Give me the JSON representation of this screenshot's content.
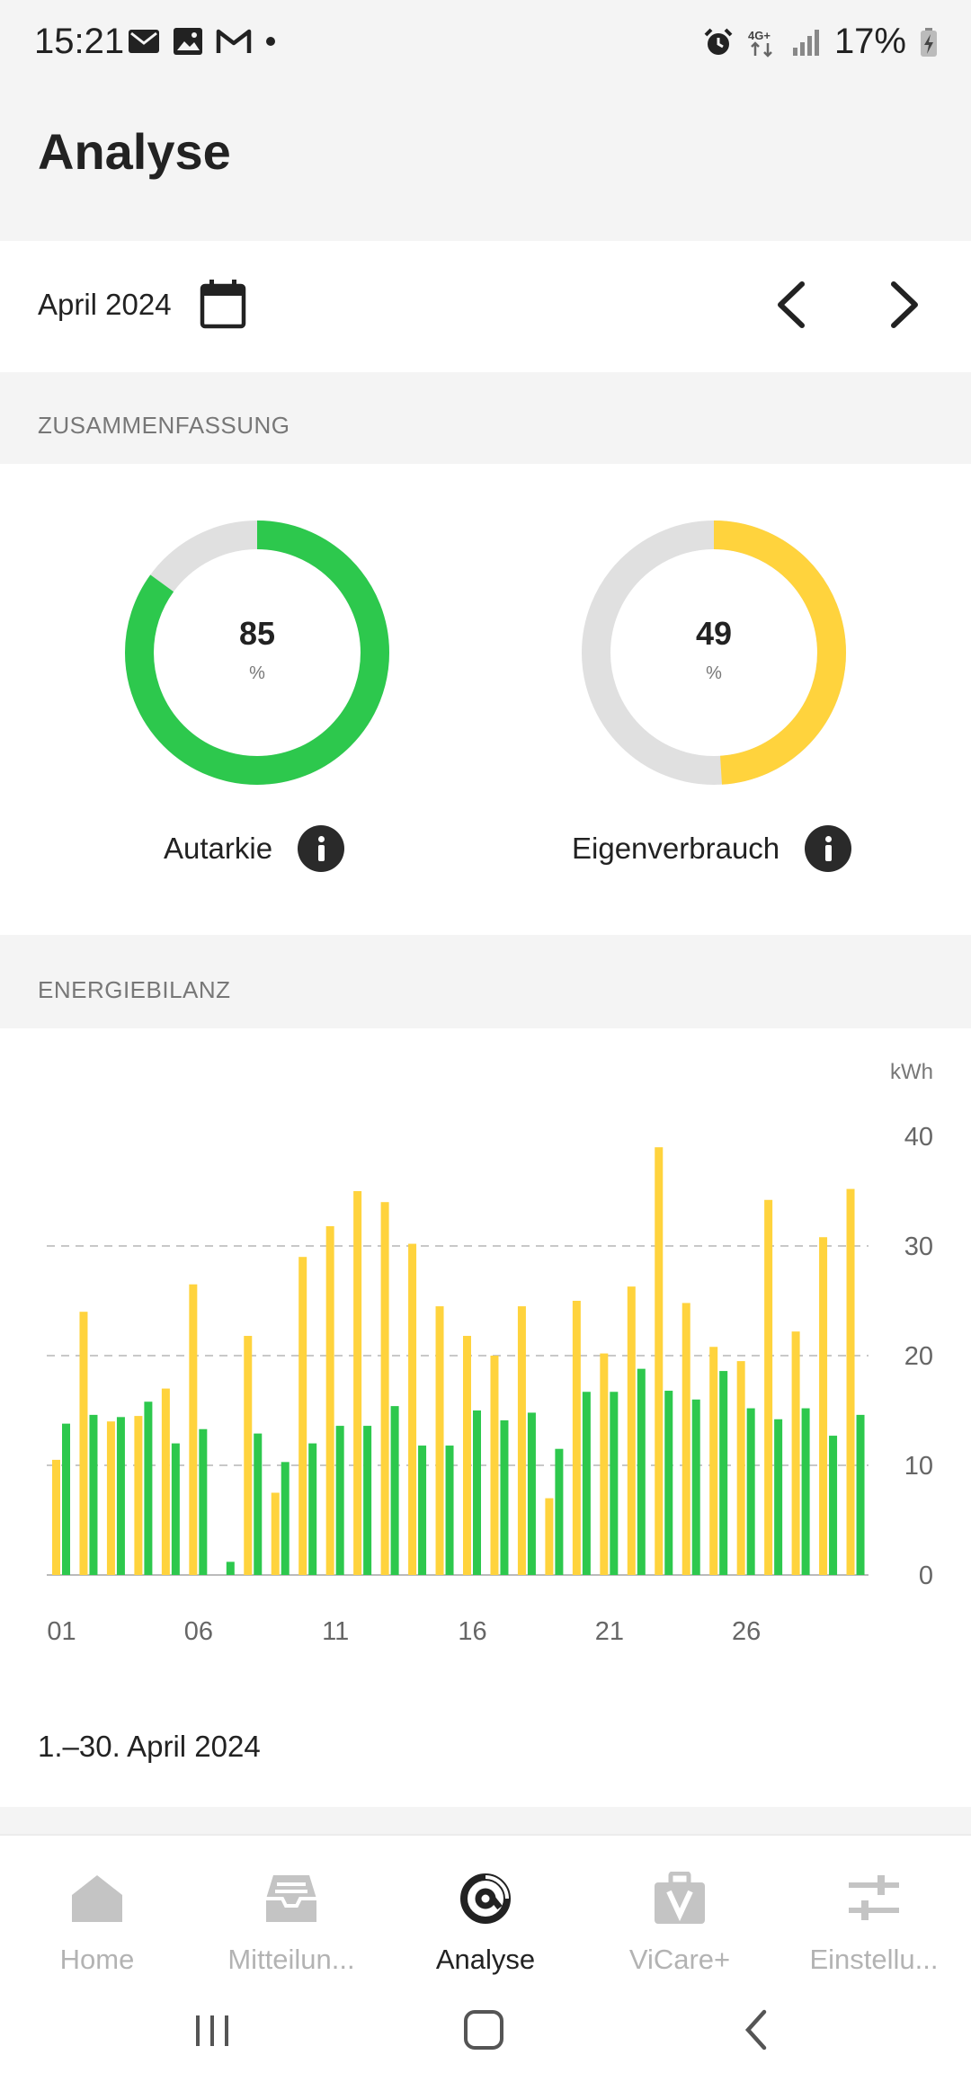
{
  "status_bar": {
    "time": "15:21",
    "battery": "17%",
    "network": "4G+"
  },
  "header": {
    "title": "Analyse"
  },
  "date_selector": {
    "label": "April 2024"
  },
  "summary": {
    "section_title": "ZUSAMMENFASSUNG",
    "autarkie": {
      "value": "85",
      "unit": "%",
      "label": "Autarkie",
      "percent": 85,
      "color": "#2dc84d"
    },
    "eigenverbrauch": {
      "value": "49",
      "unit": "%",
      "label": "Eigenverbrauch",
      "percent": 49,
      "color": "#ffd33d"
    }
  },
  "energy": {
    "section_title": "ENERGIEBILANZ",
    "period": "1.–30. April 2024"
  },
  "chart_data": {
    "type": "bar",
    "ylabel": "kWh",
    "ylim": [
      0,
      40
    ],
    "yticks": [
      "0",
      "10",
      "20",
      "30",
      "40"
    ],
    "x": [
      1,
      2,
      3,
      4,
      5,
      6,
      7,
      8,
      9,
      10,
      11,
      12,
      13,
      14,
      15,
      16,
      17,
      18,
      19,
      20,
      21,
      22,
      23,
      24,
      25,
      26,
      27,
      28,
      29,
      30
    ],
    "xtick_labels": [
      "01",
      "06",
      "11",
      "16",
      "21",
      "26"
    ],
    "grid": "dashed horizontal at 10, 20, 30",
    "series": [
      {
        "color": "#ffd33d",
        "values": [
          10.5,
          24,
          14,
          14.5,
          17,
          26.5,
          0,
          21.8,
          7.5,
          29,
          31.8,
          35,
          34,
          30.2,
          24.5,
          21.8,
          20,
          24.5,
          7,
          25,
          20.2,
          26.3,
          39,
          24.8,
          20.8,
          19.5,
          34.2,
          22.2,
          30.8,
          35.2
        ]
      },
      {
        "color": "#2dc84d",
        "values": [
          13.8,
          14.6,
          14.4,
          15.8,
          12,
          13.3,
          1.2,
          12.9,
          10.3,
          12,
          13.6,
          13.6,
          15.4,
          11.8,
          11.8,
          15,
          14.1,
          14.8,
          11.5,
          16.7,
          16.7,
          18.8,
          16.8,
          16,
          18.6,
          15.2,
          14.2,
          15.2,
          12.7,
          14.6
        ]
      }
    ]
  },
  "bottom_nav": {
    "items": [
      {
        "label": "Home",
        "icon": "home-icon",
        "active": false
      },
      {
        "label": "Mitteilun...",
        "icon": "inbox-icon",
        "active": false
      },
      {
        "label": "Analyse",
        "icon": "analyse-icon",
        "active": true
      },
      {
        "label": "ViCare+",
        "icon": "toolbox-icon",
        "active": false
      },
      {
        "label": "Einstellu...",
        "icon": "sliders-icon",
        "active": false
      }
    ]
  }
}
